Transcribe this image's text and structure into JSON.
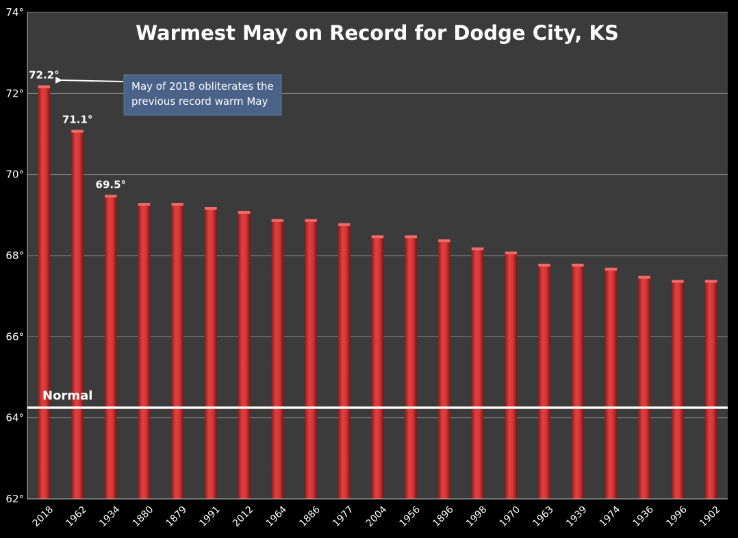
{
  "chart_data": {
    "type": "bar",
    "title": "Warmest May on Record for Dodge City, KS",
    "xlabel": "",
    "ylabel": "",
    "ylim": [
      62,
      74
    ],
    "yticks": [
      62,
      64,
      66,
      68,
      70,
      72,
      74
    ],
    "ytick_labels": [
      "62°",
      "64°",
      "66°",
      "68°",
      "70°",
      "72°",
      "74°"
    ],
    "grid": true,
    "legend": "none",
    "bar_color": "#cc2f2f",
    "background": "#3b3b3b",
    "categories": [
      "2018",
      "1962",
      "1934",
      "1880",
      "1879",
      "1991",
      "2012",
      "1964",
      "1886",
      "1977",
      "2004",
      "1956",
      "1896",
      "1998",
      "1970",
      "1963",
      "1939",
      "1974",
      "1936",
      "1996",
      "1902"
    ],
    "values": [
      72.2,
      71.1,
      69.5,
      69.3,
      69.3,
      69.2,
      69.1,
      68.9,
      68.9,
      68.8,
      68.5,
      68.5,
      68.4,
      68.2,
      68.1,
      67.8,
      67.8,
      67.7,
      67.5,
      67.4,
      67.4
    ],
    "data_labels": [
      {
        "index": 0,
        "text": "72.2°"
      },
      {
        "index": 1,
        "text": "71.1°"
      },
      {
        "index": 2,
        "text": "69.5°"
      }
    ],
    "reference_line": {
      "value": 64.25,
      "label": "Normal",
      "color": "#ffffff"
    },
    "annotation": {
      "lines": [
        "May of 2018 obliterates the",
        "previous record warm May"
      ],
      "target_index": 0,
      "box_color": "#4a6287"
    }
  }
}
